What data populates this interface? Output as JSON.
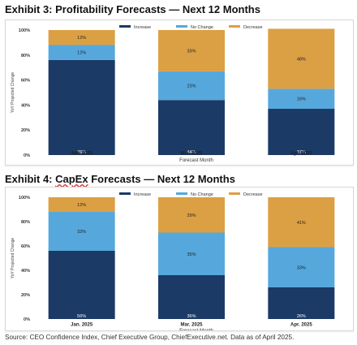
{
  "charts_text": {
    "ex3_prefix": "Exhibit 3: Profitability Forecasts — Next 12 Months",
    "ex4_prefix": "Exhibit 4: ",
    "ex4_capex": "CapEx",
    "ex4_suffix": " Forecasts — Next 12 Months"
  },
  "source_text": "Source: CEO Confidence Index, Chief Executive Group, ChiefExecutive.net. Data as of April 2025.",
  "colors": {
    "increase": "#1b3a66",
    "no_change": "#56a8dc",
    "decrease": "#dba044",
    "axis": "#555555"
  },
  "chart_data": [
    {
      "type": "bar",
      "stacked": true,
      "title": "Exhibit 3: Profitability Forecasts — Next 12 Months",
      "xlabel": "Forecast Month",
      "ylabel": "YoY Projected Change",
      "ylim": [
        0,
        100
      ],
      "yticks": [
        "0%",
        "20%",
        "40%",
        "60%",
        "80%",
        "100%"
      ],
      "categories": [
        "Jan. 2025",
        "Mar. 2025",
        "Apr. 2025"
      ],
      "legend_position": "top-center",
      "series": [
        {
          "name": "Increase",
          "color": "#1b3a66",
          "values": [
            76,
            44,
            37
          ],
          "labels": [
            "76%",
            "44%",
            "37%"
          ]
        },
        {
          "name": "No Change",
          "color": "#56a8dc",
          "values": [
            12,
            23,
            16
          ],
          "labels": [
            "12%",
            "23%",
            "16%"
          ]
        },
        {
          "name": "Decrease",
          "color": "#dba044",
          "values": [
            12,
            33,
            48
          ],
          "labels": [
            "12%",
            "33%",
            "48%"
          ]
        }
      ]
    },
    {
      "type": "bar",
      "stacked": true,
      "title": "Exhibit 4: CapEx Forecasts — Next 12 Months",
      "xlabel": "Forecast Month",
      "ylabel": "YoY Projected Change",
      "ylim": [
        0,
        100
      ],
      "yticks": [
        "0%",
        "20%",
        "40%",
        "60%",
        "80%",
        "100%"
      ],
      "categories": [
        "Jan. 2025",
        "Mar. 2025",
        "Apr. 2025"
      ],
      "legend_position": "top-center",
      "series": [
        {
          "name": "Increase",
          "color": "#1b3a66",
          "values": [
            56,
            36,
            26
          ],
          "labels": [
            "56%",
            "36%",
            "26%"
          ]
        },
        {
          "name": "No Change",
          "color": "#56a8dc",
          "values": [
            32,
            35,
            33
          ],
          "labels": [
            "32%",
            "35%",
            "33%"
          ]
        },
        {
          "name": "Decrease",
          "color": "#dba044",
          "values": [
            12,
            29,
            41
          ],
          "labels": [
            "12%",
            "29%",
            "41%"
          ]
        }
      ]
    }
  ]
}
